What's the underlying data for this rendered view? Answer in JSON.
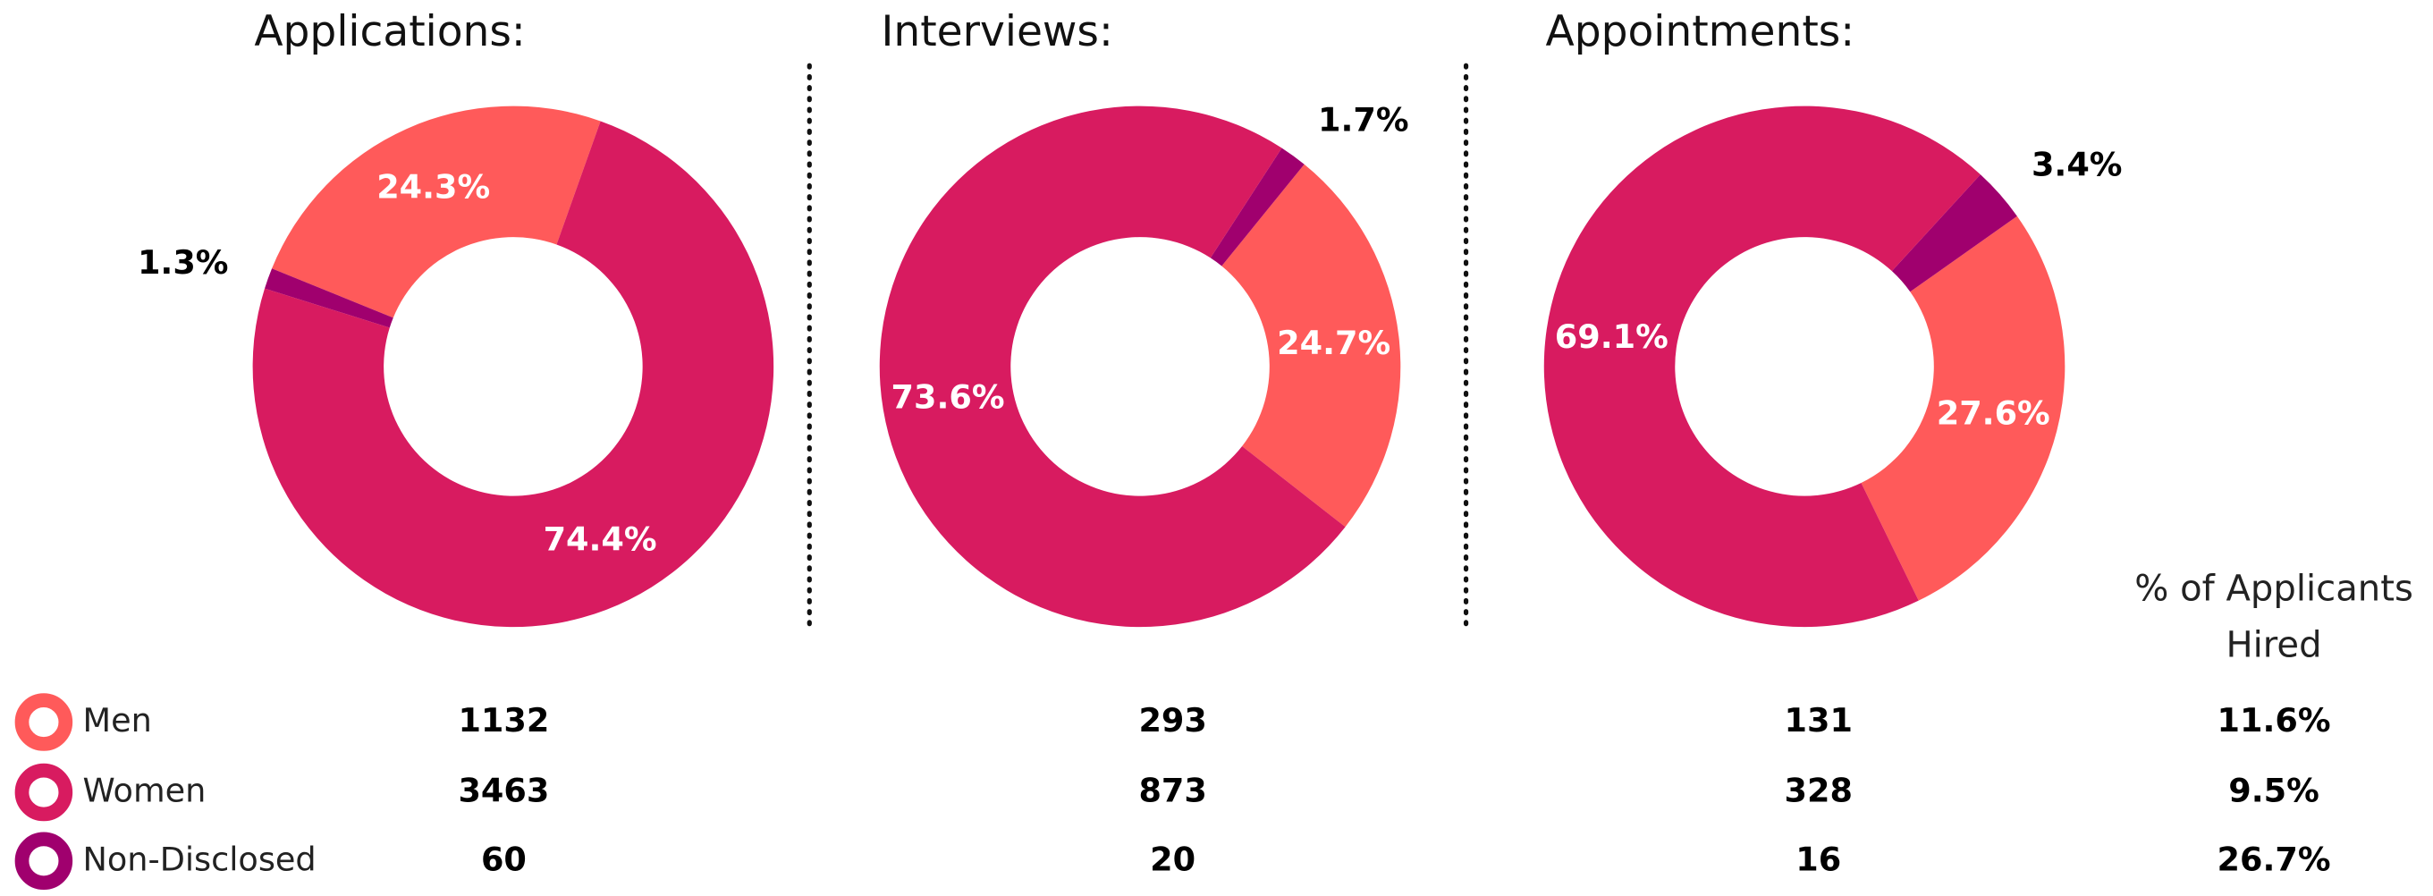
{
  "chart_data": [
    {
      "type": "pie",
      "title": "Applications:",
      "categories": [
        "Men",
        "Non-Disclosed",
        "Women"
      ],
      "values": [
        24.3,
        1.3,
        74.4
      ],
      "value_labels": [
        "24.3%",
        "1.3%",
        "74.4%"
      ],
      "colors": [
        "#ff5a5a",
        "#a0006e",
        "#d81b60"
      ],
      "start_angle": 19.6,
      "direction": "counterclockwise"
    },
    {
      "type": "pie",
      "title": "Interviews:",
      "categories": [
        "Men",
        "Non-Disclosed",
        "Women"
      ],
      "values": [
        24.7,
        1.7,
        73.6
      ],
      "value_labels": [
        "24.7%",
        "1.7%",
        "73.6%"
      ],
      "colors": [
        "#ff5a5a",
        "#a0006e",
        "#d81b60"
      ],
      "start_angle": 128,
      "direction": "counterclockwise"
    },
    {
      "type": "pie",
      "title": "Appointments:",
      "categories": [
        "Men",
        "Non-Disclosed",
        "Women"
      ],
      "values": [
        27.6,
        3.4,
        69.1
      ],
      "value_labels": [
        "27.6%",
        "3.4%",
        "69.1%"
      ],
      "colors": [
        "#ff5a5a",
        "#a0006e",
        "#d81b60"
      ],
      "start_angle": 154,
      "direction": "counterclockwise"
    }
  ],
  "table": {
    "header": "% of Applicants Hired",
    "rows": [
      [
        "1132",
        "293",
        "131",
        "11.6%"
      ],
      [
        "3463",
        "873",
        "328",
        "9.5%"
      ],
      [
        "60",
        "20",
        "16",
        "26.7%"
      ]
    ]
  }
}
